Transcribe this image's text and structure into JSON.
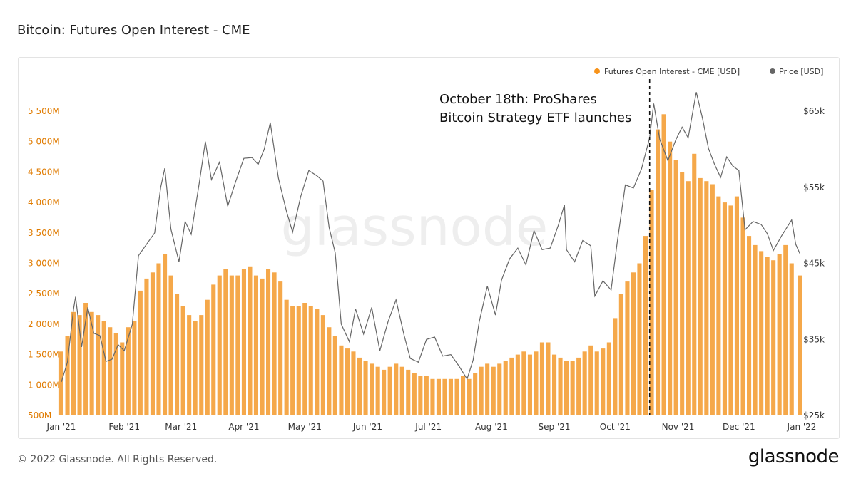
{
  "header": {
    "title": "Bitcoin: Futures Open Interest - CME"
  },
  "footer": {
    "copyright": "© 2022 Glassnode. All Rights Reserved.",
    "brand": "glassnode"
  },
  "watermark": "glassnode",
  "colors": {
    "oi": "#f7931a",
    "oi_fill": "#f5a84a",
    "price": "#666666",
    "left_axis_text": "#e07b00",
    "right_axis_text": "#333333"
  },
  "chart_data": {
    "type": "bar",
    "title": "Bitcoin: Futures Open Interest - CME",
    "series": [
      {
        "name": "Futures Open Interest - CME [USD]",
        "type": "bar",
        "axis": "left",
        "unit": "USD",
        "points": [
          [
            "2021-01-01",
            1550
          ],
          [
            "2021-01-04",
            1800
          ],
          [
            "2021-01-07",
            2200
          ],
          [
            "2021-01-10",
            2150
          ],
          [
            "2021-01-13",
            2350
          ],
          [
            "2021-01-16",
            2200
          ],
          [
            "2021-01-19",
            2150
          ],
          [
            "2021-01-22",
            2050
          ],
          [
            "2021-01-25",
            1950
          ],
          [
            "2021-01-28",
            1850
          ],
          [
            "2021-01-31",
            1700
          ],
          [
            "2021-02-03",
            1950
          ],
          [
            "2021-02-06",
            2050
          ],
          [
            "2021-02-09",
            2550
          ],
          [
            "2021-02-12",
            2750
          ],
          [
            "2021-02-15",
            2850
          ],
          [
            "2021-02-18",
            3000
          ],
          [
            "2021-02-21",
            3150
          ],
          [
            "2021-02-24",
            2800
          ],
          [
            "2021-02-27",
            2500
          ],
          [
            "2021-03-02",
            2300
          ],
          [
            "2021-03-05",
            2150
          ],
          [
            "2021-03-08",
            2050
          ],
          [
            "2021-03-11",
            2150
          ],
          [
            "2021-03-14",
            2400
          ],
          [
            "2021-03-17",
            2650
          ],
          [
            "2021-03-20",
            2800
          ],
          [
            "2021-03-23",
            2900
          ],
          [
            "2021-03-26",
            2800
          ],
          [
            "2021-03-29",
            2800
          ],
          [
            "2021-04-01",
            2900
          ],
          [
            "2021-04-04",
            2950
          ],
          [
            "2021-04-07",
            2800
          ],
          [
            "2021-04-10",
            2750
          ],
          [
            "2021-04-13",
            2900
          ],
          [
            "2021-04-16",
            2850
          ],
          [
            "2021-04-19",
            2700
          ],
          [
            "2021-04-22",
            2400
          ],
          [
            "2021-04-25",
            2300
          ],
          [
            "2021-04-28",
            2300
          ],
          [
            "2021-05-01",
            2350
          ],
          [
            "2021-05-04",
            2300
          ],
          [
            "2021-05-07",
            2250
          ],
          [
            "2021-05-10",
            2150
          ],
          [
            "2021-05-13",
            1950
          ],
          [
            "2021-05-16",
            1800
          ],
          [
            "2021-05-19",
            1650
          ],
          [
            "2021-05-22",
            1600
          ],
          [
            "2021-05-25",
            1550
          ],
          [
            "2021-05-28",
            1450
          ],
          [
            "2021-05-31",
            1400
          ],
          [
            "2021-06-03",
            1350
          ],
          [
            "2021-06-06",
            1300
          ],
          [
            "2021-06-09",
            1250
          ],
          [
            "2021-06-12",
            1300
          ],
          [
            "2021-06-15",
            1350
          ],
          [
            "2021-06-18",
            1300
          ],
          [
            "2021-06-21",
            1250
          ],
          [
            "2021-06-24",
            1200
          ],
          [
            "2021-06-27",
            1150
          ],
          [
            "2021-06-30",
            1150
          ],
          [
            "2021-07-03",
            1100
          ],
          [
            "2021-07-06",
            1100
          ],
          [
            "2021-07-09",
            1100
          ],
          [
            "2021-07-12",
            1100
          ],
          [
            "2021-07-15",
            1100
          ],
          [
            "2021-07-18",
            1150
          ],
          [
            "2021-07-21",
            1100
          ],
          [
            "2021-07-24",
            1200
          ],
          [
            "2021-07-27",
            1300
          ],
          [
            "2021-07-30",
            1350
          ],
          [
            "2021-08-02",
            1300
          ],
          [
            "2021-08-05",
            1350
          ],
          [
            "2021-08-08",
            1400
          ],
          [
            "2021-08-11",
            1450
          ],
          [
            "2021-08-14",
            1500
          ],
          [
            "2021-08-17",
            1550
          ],
          [
            "2021-08-20",
            1500
          ],
          [
            "2021-08-23",
            1550
          ],
          [
            "2021-08-26",
            1700
          ],
          [
            "2021-08-29",
            1700
          ],
          [
            "2021-09-01",
            1500
          ],
          [
            "2021-09-04",
            1450
          ],
          [
            "2021-09-07",
            1400
          ],
          [
            "2021-09-10",
            1400
          ],
          [
            "2021-09-13",
            1450
          ],
          [
            "2021-09-16",
            1550
          ],
          [
            "2021-09-19",
            1650
          ],
          [
            "2021-09-22",
            1550
          ],
          [
            "2021-09-25",
            1600
          ],
          [
            "2021-09-28",
            1700
          ],
          [
            "2021-10-01",
            2100
          ],
          [
            "2021-10-04",
            2500
          ],
          [
            "2021-10-07",
            2700
          ],
          [
            "2021-10-10",
            2850
          ],
          [
            "2021-10-13",
            3000
          ],
          [
            "2021-10-16",
            3450
          ],
          [
            "2021-10-19",
            4200
          ],
          [
            "2021-10-22",
            5200
          ],
          [
            "2021-10-25",
            5450
          ],
          [
            "2021-10-28",
            5000
          ],
          [
            "2021-10-31",
            4700
          ],
          [
            "2021-11-03",
            4500
          ],
          [
            "2021-11-06",
            4350
          ],
          [
            "2021-11-09",
            4800
          ],
          [
            "2021-11-12",
            4400
          ],
          [
            "2021-11-15",
            4350
          ],
          [
            "2021-11-18",
            4300
          ],
          [
            "2021-11-21",
            4100
          ],
          [
            "2021-11-24",
            4000
          ],
          [
            "2021-11-27",
            3950
          ],
          [
            "2021-11-30",
            4100
          ],
          [
            "2021-12-03",
            3750
          ],
          [
            "2021-12-06",
            3450
          ],
          [
            "2021-12-09",
            3300
          ],
          [
            "2021-12-12",
            3200
          ],
          [
            "2021-12-15",
            3100
          ],
          [
            "2021-12-18",
            3050
          ],
          [
            "2021-12-21",
            3150
          ],
          [
            "2021-12-24",
            3300
          ],
          [
            "2021-12-27",
            3000
          ],
          [
            "2021-12-31",
            2800
          ]
        ]
      },
      {
        "name": "Price [USD]",
        "type": "line",
        "axis": "right",
        "unit": "USD",
        "points": [
          [
            "2021-01-01",
            29400
          ],
          [
            "2021-01-04",
            32000
          ],
          [
            "2021-01-07",
            39000
          ],
          [
            "2021-01-08",
            40600
          ],
          [
            "2021-01-11",
            34000
          ],
          [
            "2021-01-14",
            39200
          ],
          [
            "2021-01-17",
            35800
          ],
          [
            "2021-01-20",
            35500
          ],
          [
            "2021-01-23",
            32100
          ],
          [
            "2021-01-26",
            32400
          ],
          [
            "2021-01-29",
            34300
          ],
          [
            "2021-02-01",
            33500
          ],
          [
            "2021-02-05",
            37000
          ],
          [
            "2021-02-08",
            46000
          ],
          [
            "2021-02-12",
            47500
          ],
          [
            "2021-02-16",
            49000
          ],
          [
            "2021-02-19",
            55000
          ],
          [
            "2021-02-21",
            57500
          ],
          [
            "2021-02-24",
            49500
          ],
          [
            "2021-02-28",
            45200
          ],
          [
            "2021-03-03",
            50500
          ],
          [
            "2021-03-06",
            48800
          ],
          [
            "2021-03-10",
            55600
          ],
          [
            "2021-03-13",
            61000
          ],
          [
            "2021-03-16",
            56000
          ],
          [
            "2021-03-20",
            58300
          ],
          [
            "2021-03-24",
            52500
          ],
          [
            "2021-03-28",
            55800
          ],
          [
            "2021-04-01",
            58800
          ],
          [
            "2021-04-05",
            58900
          ],
          [
            "2021-04-08",
            58000
          ],
          [
            "2021-04-11",
            60000
          ],
          [
            "2021-04-14",
            63500
          ],
          [
            "2021-04-18",
            56200
          ],
          [
            "2021-04-22",
            51800
          ],
          [
            "2021-04-25",
            49100
          ],
          [
            "2021-04-29",
            53800
          ],
          [
            "2021-05-03",
            57200
          ],
          [
            "2021-05-07",
            56500
          ],
          [
            "2021-05-10",
            55800
          ],
          [
            "2021-05-13",
            49700
          ],
          [
            "2021-05-16",
            46400
          ],
          [
            "2021-05-19",
            37000
          ],
          [
            "2021-05-23",
            34700
          ],
          [
            "2021-05-26",
            39000
          ],
          [
            "2021-05-30",
            35700
          ],
          [
            "2021-06-03",
            39200
          ],
          [
            "2021-06-07",
            33500
          ],
          [
            "2021-06-11",
            37300
          ],
          [
            "2021-06-15",
            40200
          ],
          [
            "2021-06-19",
            35500
          ],
          [
            "2021-06-22",
            32500
          ],
          [
            "2021-06-26",
            32000
          ],
          [
            "2021-06-30",
            35000
          ],
          [
            "2021-07-04",
            35300
          ],
          [
            "2021-07-08",
            32800
          ],
          [
            "2021-07-12",
            33000
          ],
          [
            "2021-07-16",
            31500
          ],
          [
            "2021-07-20",
            29800
          ],
          [
            "2021-07-23",
            32300
          ],
          [
            "2021-07-26",
            37300
          ],
          [
            "2021-07-30",
            42000
          ],
          [
            "2021-08-03",
            38200
          ],
          [
            "2021-08-06",
            42800
          ],
          [
            "2021-08-10",
            45600
          ],
          [
            "2021-08-14",
            47000
          ],
          [
            "2021-08-18",
            44800
          ],
          [
            "2021-08-22",
            49300
          ],
          [
            "2021-08-26",
            46800
          ],
          [
            "2021-08-30",
            47000
          ],
          [
            "2021-09-03",
            50000
          ],
          [
            "2021-09-06",
            52700
          ],
          [
            "2021-09-07",
            46800
          ],
          [
            "2021-09-11",
            45200
          ],
          [
            "2021-09-15",
            48000
          ],
          [
            "2021-09-19",
            47300
          ],
          [
            "2021-09-21",
            40700
          ],
          [
            "2021-09-25",
            42700
          ],
          [
            "2021-09-29",
            41500
          ],
          [
            "2021-10-02",
            47700
          ],
          [
            "2021-10-06",
            55300
          ],
          [
            "2021-10-10",
            54900
          ],
          [
            "2021-10-14",
            57400
          ],
          [
            "2021-10-18",
            61500
          ],
          [
            "2021-10-20",
            66000
          ],
          [
            "2021-10-23",
            61300
          ],
          [
            "2021-10-27",
            58500
          ],
          [
            "2021-10-31",
            61300
          ],
          [
            "2021-11-03",
            62900
          ],
          [
            "2021-11-06",
            61500
          ],
          [
            "2021-11-10",
            67500
          ],
          [
            "2021-11-13",
            64100
          ],
          [
            "2021-11-16",
            60100
          ],
          [
            "2021-11-19",
            58000
          ],
          [
            "2021-11-22",
            56300
          ],
          [
            "2021-11-25",
            59000
          ],
          [
            "2021-11-28",
            57800
          ],
          [
            "2021-12-01",
            57200
          ],
          [
            "2021-12-04",
            49400
          ],
          [
            "2021-12-08",
            50500
          ],
          [
            "2021-12-12",
            50100
          ],
          [
            "2021-12-15",
            48900
          ],
          [
            "2021-12-18",
            46700
          ],
          [
            "2021-12-22",
            48600
          ],
          [
            "2021-12-27",
            50700
          ],
          [
            "2021-12-29",
            47500
          ],
          [
            "2021-12-31",
            46300
          ]
        ]
      }
    ],
    "x_ticks": [
      "Jan '21",
      "Feb '21",
      "Mar '21",
      "Apr '21",
      "May '21",
      "Jun '21",
      "Jul '21",
      "Aug '21",
      "Sep '21",
      "Oct '21",
      "Nov '21",
      "Dec '21",
      "Jan '22"
    ],
    "x_tick_dates": [
      "2021-01-01",
      "2021-02-01",
      "2021-03-01",
      "2021-04-01",
      "2021-05-01",
      "2021-06-01",
      "2021-07-01",
      "2021-08-01",
      "2021-09-01",
      "2021-10-01",
      "2021-11-01",
      "2021-12-01",
      "2022-01-01"
    ],
    "y_left": {
      "ticks": [
        500,
        1000,
        1500,
        2000,
        2500,
        3000,
        3500,
        4000,
        4500,
        5000,
        5500
      ],
      "labels": [
        "500M",
        "1 000M",
        "1 500M",
        "2 000M",
        "2 500M",
        "3 000M",
        "3 500M",
        "4 000M",
        "4 500M",
        "5 000M",
        "5 500M"
      ],
      "unit": "M USD"
    },
    "y_right": {
      "ticks": [
        25000,
        35000,
        45000,
        55000,
        65000
      ],
      "labels": [
        "$25k",
        "$35k",
        "$45k",
        "$55k",
        "$65k"
      ]
    },
    "annotations": [
      {
        "date": "2021-10-18",
        "style": "dashed-vertical",
        "text_lines": [
          "October 18th: ProShares",
          "Bitcoin Strategy ETF launches"
        ]
      }
    ],
    "legend_position": "top-right",
    "grid": false
  }
}
